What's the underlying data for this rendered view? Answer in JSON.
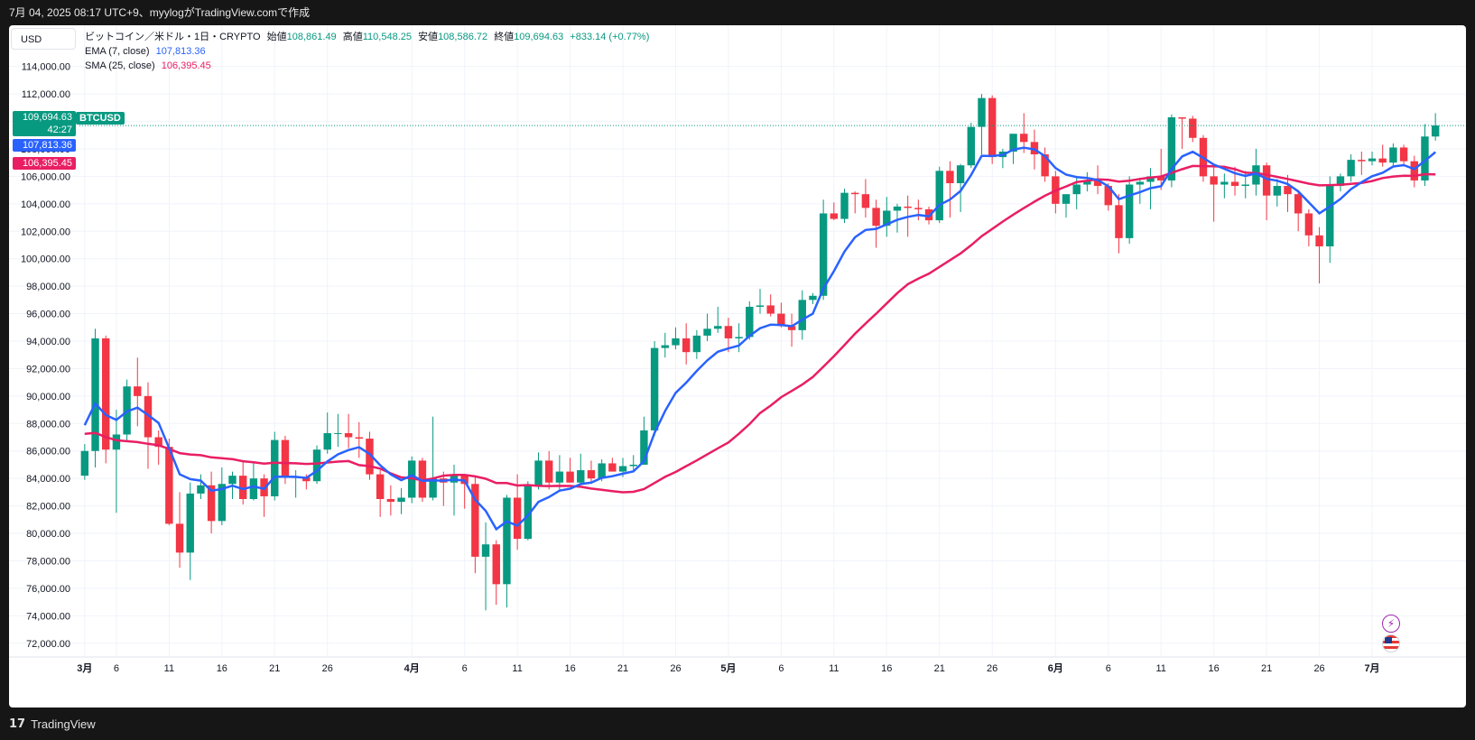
{
  "header": {
    "text": "7月 04, 2025 08:17 UTC+9、myylogがTradingView.comで作成"
  },
  "toolbar": {
    "currency": "USD"
  },
  "legend": {
    "symbol_title": "ビットコイン／米ドル・1日・CRYPTO",
    "open_label": "始値",
    "open": "108,861.49",
    "high_label": "高値",
    "high": "110,548.25",
    "low_label": "安値",
    "low": "108,586.72",
    "close_label": "終値",
    "close": "109,694.63",
    "change": "+833.14 (+0.77%)",
    "ema_label": "EMA (7, close)",
    "ema_value": "107,813.36",
    "sma_label": "SMA (25, close)",
    "sma_value": "106,395.45"
  },
  "badges": {
    "last_price": "109,694.63",
    "countdown": "42:27",
    "symbol": "BTCUSD",
    "ema": "107,813.36",
    "sma": "106,395.45"
  },
  "footer": {
    "brand": "TradingView"
  },
  "colors": {
    "up": "#089981",
    "down": "#f23645",
    "ema": "#2962ff",
    "sma": "#e91e63",
    "grid": "#f0f3fa"
  },
  "chart_data": {
    "type": "candlestick",
    "ylim": [
      71000,
      117000
    ],
    "y_ticks": [
      72000,
      74000,
      76000,
      78000,
      80000,
      82000,
      84000,
      86000,
      88000,
      90000,
      92000,
      94000,
      96000,
      98000,
      100000,
      102000,
      104000,
      106000,
      108000,
      110000,
      112000,
      114000
    ],
    "x_tick_labels": [
      "3月",
      "6",
      "11",
      "16",
      "21",
      "26",
      "4月",
      "6",
      "11",
      "16",
      "21",
      "26",
      "5月",
      "6",
      "11",
      "16",
      "21",
      "26",
      "6月",
      "6",
      "11",
      "16",
      "21",
      "26",
      "7月"
    ],
    "x_tick_day_index": [
      0,
      3,
      8,
      13,
      18,
      23,
      31,
      36,
      41,
      46,
      51,
      56,
      61,
      66,
      71,
      76,
      81,
      86,
      92,
      97,
      102,
      107,
      112,
      117,
      122
    ],
    "ohlc": [
      [
        84200,
        86500,
        83900,
        86000
      ],
      [
        86000,
        94900,
        84800,
        94200
      ],
      [
        94200,
        94400,
        85100,
        86100
      ],
      [
        86100,
        89000,
        81500,
        87200
      ],
      [
        87200,
        91200,
        86700,
        90700
      ],
      [
        90700,
        92800,
        87800,
        90000
      ],
      [
        90000,
        91000,
        84700,
        87000
      ],
      [
        87000,
        87500,
        85000,
        86300
      ],
      [
        86300,
        86900,
        80600,
        80700
      ],
      [
        80700,
        83000,
        77500,
        78600
      ],
      [
        78600,
        83700,
        76600,
        82900
      ],
      [
        82900,
        84300,
        82500,
        83500
      ],
      [
        83500,
        84500,
        80000,
        80900
      ],
      [
        80900,
        84800,
        80600,
        83600
      ],
      [
        83600,
        84500,
        82500,
        84200
      ],
      [
        84200,
        85300,
        82100,
        82500
      ],
      [
        82500,
        85100,
        82400,
        84000
      ],
      [
        84000,
        84300,
        81200,
        82700
      ],
      [
        82700,
        87400,
        82400,
        86800
      ],
      [
        86800,
        87100,
        83600,
        84100
      ],
      [
        84100,
        84600,
        82600,
        84100
      ],
      [
        84100,
        84300,
        83200,
        83800
      ],
      [
        83800,
        86400,
        83600,
        86100
      ],
      [
        86100,
        88800,
        85800,
        87300
      ],
      [
        87300,
        88700,
        86300,
        87300
      ],
      [
        87300,
        88700,
        86200,
        87000
      ],
      [
        87000,
        88100,
        85500,
        86900
      ],
      [
        86900,
        87400,
        83900,
        84300
      ],
      [
        84300,
        84600,
        81200,
        82500
      ],
      [
        82500,
        83500,
        81300,
        82300
      ],
      [
        82300,
        83300,
        81400,
        82600
      ],
      [
        82600,
        85600,
        82200,
        85300
      ],
      [
        85300,
        85500,
        82300,
        82600
      ],
      [
        82600,
        88500,
        82400,
        84000
      ],
      [
        84000,
        84500,
        82000,
        83700
      ],
      [
        83700,
        85000,
        81300,
        84200
      ],
      [
        84200,
        84300,
        81800,
        83600
      ],
      [
        83600,
        84200,
        77100,
        78300
      ],
      [
        78300,
        80800,
        74400,
        79200
      ],
      [
        79200,
        79500,
        74800,
        76300
      ],
      [
        76300,
        82800,
        74600,
        82600
      ],
      [
        82600,
        84300,
        78800,
        79600
      ],
      [
        79600,
        83800,
        79500,
        83500
      ],
      [
        83500,
        85900,
        83200,
        85300
      ],
      [
        85300,
        86000,
        83200,
        83700
      ],
      [
        83700,
        85700,
        83100,
        84500
      ],
      [
        84500,
        85500,
        83700,
        83700
      ],
      [
        83700,
        85800,
        83600,
        84600
      ],
      [
        84600,
        85300,
        83600,
        84000
      ],
      [
        84000,
        85400,
        83800,
        85100
      ],
      [
        85100,
        85500,
        84500,
        84500
      ],
      [
        84500,
        85500,
        84100,
        84900
      ],
      [
        84900,
        85700,
        84600,
        85000
      ],
      [
        85000,
        88500,
        85000,
        87500
      ],
      [
        87500,
        94000,
        87100,
        93500
      ],
      [
        93500,
        94600,
        92800,
        93700
      ],
      [
        93700,
        95000,
        93400,
        94200
      ],
      [
        94200,
        95300,
        92300,
        93200
      ],
      [
        93200,
        94800,
        92700,
        94400
      ],
      [
        94400,
        96000,
        94000,
        94900
      ],
      [
        94900,
        96500,
        94600,
        95100
      ],
      [
        95100,
        95700,
        93200,
        94200
      ],
      [
        94200,
        95300,
        93200,
        94300
      ],
      [
        94300,
        96900,
        94100,
        96500
      ],
      [
        96500,
        97800,
        96000,
        96600
      ],
      [
        96600,
        97400,
        95800,
        96000
      ],
      [
        96000,
        96800,
        95000,
        95100
      ],
      [
        95100,
        96000,
        93600,
        94800
      ],
      [
        94800,
        97700,
        94100,
        97000
      ],
      [
        97000,
        97500,
        96700,
        97300
      ],
      [
        97300,
        104300,
        97000,
        103300
      ],
      [
        103300,
        104100,
        102800,
        102900
      ],
      [
        102900,
        105100,
        102600,
        104800
      ],
      [
        104800,
        104900,
        103300,
        104700
      ],
      [
        104700,
        105800,
        103000,
        103700
      ],
      [
        103700,
        104300,
        100800,
        102400
      ],
      [
        102400,
        104500,
        101600,
        103500
      ],
      [
        103500,
        104000,
        101900,
        103800
      ],
      [
        103800,
        104600,
        101600,
        103700
      ],
      [
        103700,
        104300,
        102800,
        103600
      ],
      [
        103600,
        103800,
        102500,
        102800
      ],
      [
        102800,
        106700,
        102600,
        106400
      ],
      [
        106400,
        107100,
        103000,
        105500
      ],
      [
        105500,
        106900,
        103400,
        106800
      ],
      [
        106800,
        109900,
        106600,
        109600
      ],
      [
        109600,
        112000,
        107600,
        111700
      ],
      [
        111700,
        111900,
        106900,
        107400
      ],
      [
        107400,
        108000,
        106600,
        107800
      ],
      [
        107800,
        109000,
        106900,
        109100
      ],
      [
        109100,
        110600,
        107700,
        108500
      ],
      [
        108500,
        109400,
        106500,
        107600
      ],
      [
        107600,
        108100,
        105600,
        106000
      ],
      [
        106000,
        106400,
        103300,
        104000
      ],
      [
        104000,
        104600,
        103000,
        104700
      ],
      [
        104700,
        106000,
        103600,
        105400
      ],
      [
        105400,
        106300,
        104900,
        105700
      ],
      [
        105700,
        106800,
        104700,
        105300
      ],
      [
        105300,
        105500,
        103500,
        103900
      ],
      [
        103900,
        104700,
        100400,
        101500
      ],
      [
        101500,
        106000,
        101100,
        105400
      ],
      [
        105400,
        105900,
        104000,
        105600
      ],
      [
        105600,
        106600,
        103600,
        106000
      ],
      [
        106000,
        108000,
        105000,
        105700
      ],
      [
        105700,
        110500,
        105200,
        110300
      ],
      [
        110300,
        110300,
        108000,
        110200
      ],
      [
        110200,
        110400,
        108500,
        108800
      ],
      [
        108800,
        109000,
        105600,
        106000
      ],
      [
        106000,
        106800,
        102700,
        105400
      ],
      [
        105400,
        106200,
        104400,
        105600
      ],
      [
        105600,
        106700,
        104600,
        105300
      ],
      [
        105300,
        106400,
        104400,
        105400
      ],
      [
        105400,
        108000,
        104600,
        106800
      ],
      [
        106800,
        107000,
        102800,
        104600
      ],
      [
        104600,
        105800,
        103800,
        105300
      ],
      [
        105300,
        106100,
        103400,
        104700
      ],
      [
        104700,
        105000,
        102000,
        103300
      ],
      [
        103300,
        103600,
        100900,
        101700
      ],
      [
        101700,
        102300,
        98200,
        100900
      ],
      [
        100900,
        106000,
        99700,
        105300
      ],
      [
        105300,
        106200,
        104900,
        106000
      ],
      [
        106000,
        107600,
        105600,
        107200
      ],
      [
        107200,
        107800,
        106100,
        107100
      ],
      [
        107100,
        107800,
        106800,
        107300
      ],
      [
        107300,
        108300,
        106700,
        107000
      ],
      [
        107000,
        108400,
        106800,
        108100
      ],
      [
        108100,
        108300,
        106800,
        107100
      ],
      [
        107100,
        107500,
        105200,
        105700
      ],
      [
        105700,
        109800,
        105300,
        108900
      ],
      [
        108900,
        110600,
        108600,
        109700
      ]
    ],
    "ema": {
      "name": "EMA (7, close)",
      "last": 107813.36
    },
    "sma": {
      "name": "SMA (25, close)",
      "last": 106395.45
    },
    "last_close": 109694.63
  }
}
